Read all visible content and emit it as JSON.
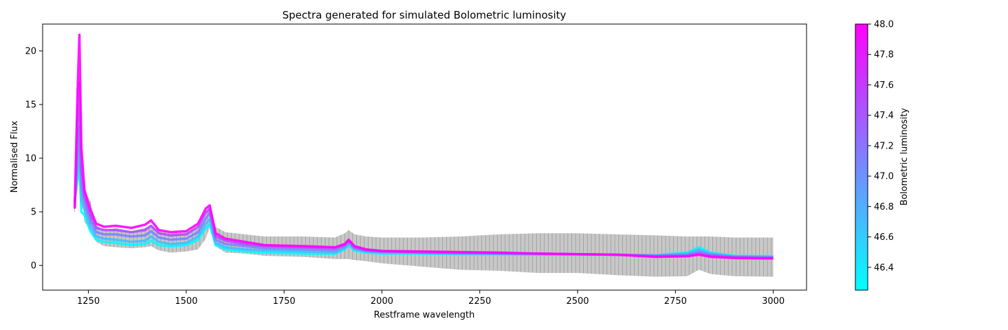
{
  "chart_data": {
    "type": "line",
    "title": "Spectra  generated for simulated Bolometric luminosity",
    "xlabel": "Restframe wavelength",
    "ylabel": "Normalised Flux",
    "xlim": [
      1133,
      3085
    ],
    "ylim": [
      -2.3,
      22.5
    ],
    "xticks": [
      1250,
      1500,
      1750,
      2000,
      2250,
      2500,
      2750,
      3000
    ],
    "yticks": [
      0,
      5,
      10,
      15,
      20
    ],
    "grid": false,
    "colorbar": {
      "label": "Bolometric luminosity",
      "range": [
        46.25,
        48.0
      ],
      "ticks": [
        46.4,
        46.6,
        46.8,
        47.0,
        47.2,
        47.4,
        47.6,
        47.8,
        48.0
      ],
      "colormap": [
        "#00ffff",
        "#ff00ff"
      ]
    },
    "wavelength": [
      1215,
      1222,
      1227,
      1232,
      1240,
      1255,
      1270,
      1290,
      1320,
      1360,
      1395,
      1410,
      1430,
      1460,
      1500,
      1530,
      1550,
      1560,
      1575,
      1600,
      1650,
      1700,
      1800,
      1880,
      1905,
      1915,
      1930,
      1960,
      2000,
      2100,
      2200,
      2300,
      2400,
      2500,
      2600,
      2700,
      2780,
      2810,
      2840,
      2900,
      3000
    ],
    "error_band": {
      "low": [
        5.0,
        7.0,
        10.0,
        7.0,
        4.0,
        3.5,
        2.2,
        1.8,
        1.7,
        1.6,
        1.7,
        1.8,
        1.4,
        1.2,
        1.3,
        1.5,
        2.5,
        3.6,
        1.8,
        1.2,
        1.1,
        0.9,
        0.8,
        0.6,
        0.6,
        0.6,
        0.5,
        0.4,
        0.2,
        -0.1,
        -0.4,
        -0.5,
        -0.7,
        -0.7,
        -0.9,
        -1.05,
        -1.0,
        -0.4,
        -0.8,
        -1.0,
        -1.05
      ],
      "high": [
        6.0,
        12.0,
        15.0,
        10.0,
        7.0,
        6.0,
        3.8,
        3.2,
        3.5,
        3.2,
        3.5,
        3.8,
        3.2,
        3.0,
        3.1,
        3.5,
        4.5,
        5.5,
        3.6,
        3.1,
        2.9,
        2.7,
        2.7,
        2.6,
        3.0,
        3.3,
        2.9,
        2.7,
        2.6,
        2.6,
        2.7,
        2.9,
        3.0,
        3.0,
        2.9,
        2.8,
        2.7,
        2.7,
        2.7,
        2.6,
        2.6
      ]
    },
    "series": [
      {
        "name": "46.3",
        "luminosity": 46.3,
        "values": [
          6.2,
          8.0,
          9.5,
          5.0,
          4.7,
          3.2,
          2.4,
          2.2,
          2.1,
          1.9,
          2.0,
          2.3,
          1.9,
          1.8,
          1.9,
          2.4,
          3.5,
          3.8,
          1.9,
          1.5,
          1.3,
          1.2,
          1.1,
          1.1,
          1.5,
          1.9,
          1.4,
          1.2,
          1.1,
          1.1,
          1.05,
          1.05,
          1.0,
          1.0,
          1.0,
          0.95,
          1.2,
          1.7,
          1.2,
          0.9,
          0.85
        ]
      },
      {
        "name": "46.7",
        "luminosity": 46.7,
        "values": [
          6.0,
          9.0,
          11.0,
          6.0,
          5.2,
          3.6,
          2.7,
          2.5,
          2.4,
          2.2,
          2.3,
          2.7,
          2.2,
          2.0,
          2.1,
          2.7,
          3.9,
          4.3,
          2.1,
          1.7,
          1.5,
          1.4,
          1.3,
          1.2,
          1.6,
          2.0,
          1.5,
          1.3,
          1.2,
          1.15,
          1.1,
          1.1,
          1.05,
          1.05,
          1.0,
          0.95,
          1.1,
          1.5,
          1.1,
          0.85,
          0.8
        ]
      },
      {
        "name": "47.1",
        "luminosity": 47.1,
        "values": [
          5.8,
          10.5,
          13.0,
          7.5,
          5.8,
          4.2,
          3.1,
          2.9,
          2.9,
          2.7,
          2.8,
          3.2,
          2.6,
          2.4,
          2.5,
          3.1,
          4.4,
          4.9,
          2.4,
          2.0,
          1.8,
          1.6,
          1.5,
          1.4,
          1.8,
          2.2,
          1.6,
          1.4,
          1.3,
          1.2,
          1.15,
          1.1,
          1.1,
          1.05,
          1.0,
          0.9,
          1.0,
          1.3,
          1.0,
          0.8,
          0.75
        ]
      },
      {
        "name": "47.5",
        "luminosity": 47.5,
        "values": [
          5.5,
          13.0,
          17.0,
          9.0,
          6.4,
          4.7,
          3.5,
          3.3,
          3.3,
          3.1,
          3.3,
          3.7,
          3.0,
          2.8,
          2.9,
          3.6,
          4.9,
          5.3,
          2.7,
          2.3,
          2.0,
          1.8,
          1.7,
          1.6,
          1.9,
          2.3,
          1.7,
          1.4,
          1.3,
          1.25,
          1.2,
          1.15,
          1.1,
          1.05,
          1.0,
          0.85,
          0.9,
          1.1,
          0.9,
          0.75,
          0.7
        ]
      },
      {
        "name": "48.0",
        "luminosity": 48.0,
        "values": [
          5.3,
          16.0,
          21.5,
          11.0,
          7.0,
          5.2,
          3.9,
          3.6,
          3.7,
          3.5,
          3.8,
          4.2,
          3.3,
          3.1,
          3.2,
          3.9,
          5.3,
          5.6,
          3.0,
          2.5,
          2.2,
          1.9,
          1.8,
          1.7,
          2.0,
          2.4,
          1.8,
          1.5,
          1.35,
          1.3,
          1.25,
          1.2,
          1.1,
          1.05,
          1.0,
          0.8,
          0.85,
          1.0,
          0.8,
          0.7,
          0.65
        ]
      }
    ]
  }
}
